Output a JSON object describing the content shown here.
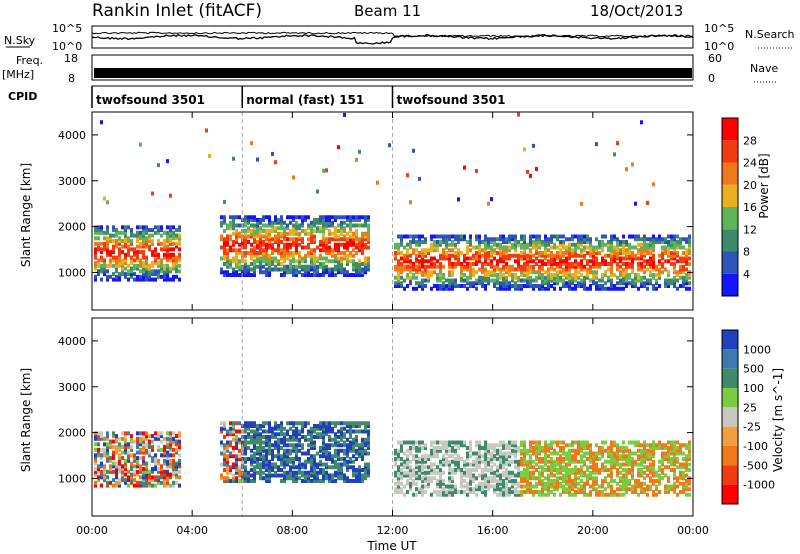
{
  "header": {
    "station": "Rankin Inlet (fitACF)",
    "beam": "Beam 11",
    "date": "18/Oct/2013"
  },
  "panels": {
    "nsky_label": "N.Sky",
    "nsearch_label": "N.Search",
    "nsky_ticks": [
      "10^5",
      "10^0"
    ],
    "nsky_right_ticks": [
      "10^5",
      "10^0"
    ],
    "freq_label": "Freq.",
    "freq_unit": "[MHz]",
    "freq_ticks": [
      "18",
      "8"
    ],
    "nave_label": "Nave",
    "nave_ticks": [
      "60",
      "0"
    ],
    "cpid_label": "CPID",
    "cpid_segments": [
      {
        "label": "twofsound 3501",
        "start_hour": 0,
        "end_hour": 6
      },
      {
        "label": "normal (fast) 151",
        "start_hour": 6,
        "end_hour": 12
      },
      {
        "label": "twofsound 3501",
        "start_hour": 12,
        "end_hour": 24
      }
    ]
  },
  "axes": {
    "ylabel": "Slant Range [km]",
    "yticks": [
      "1000",
      "2000",
      "3000",
      "4000"
    ],
    "xlabel": "Time UT",
    "xticks": [
      "00:00",
      "04:00",
      "08:00",
      "12:00",
      "16:00",
      "20:00",
      "00:00"
    ]
  },
  "power_scale": {
    "label": "Power [dB]",
    "ticks": [
      "4",
      "8",
      "12",
      "16",
      "20",
      "24",
      "28"
    ],
    "colors": [
      "#1414ff",
      "#2d55b8",
      "#3f8a6a",
      "#5fb35a",
      "#e8b020",
      "#f07818",
      "#f03c10",
      "#ff0000"
    ]
  },
  "velocity_scale": {
    "label": "Velocity [m s^-1]",
    "ticks": [
      "1000",
      "500",
      "100",
      "25",
      "-25",
      "-100",
      "-500",
      "-1000"
    ],
    "colors": [
      "#2040c0",
      "#3d7ab0",
      "#3f8a6a",
      "#7acc40",
      "#c8c8c0",
      "#f0a040",
      "#f07818",
      "#f03c10",
      "#ff0000"
    ]
  },
  "chart_data": [
    {
      "type": "heatmap",
      "title": "Power",
      "xlabel": "Time UT",
      "ylabel": "Slant Range [km]",
      "xlim": [
        0,
        24
      ],
      "ylim": [
        180,
        4500
      ],
      "colorbar_label": "Power [dB]",
      "colorbar_range": [
        0,
        30
      ],
      "echo_regions": [
        {
          "t0": 0.0,
          "t1": 3.5,
          "r0": 800,
          "r1": 2000,
          "typical_db": 26
        },
        {
          "t0": 5.0,
          "t1": 11.0,
          "r0": 900,
          "r1": 2200,
          "typical_db": 24
        },
        {
          "t0": 12.0,
          "t1": 24.0,
          "r0": 600,
          "r1": 1800,
          "typical_db": 28
        }
      ]
    },
    {
      "type": "heatmap",
      "title": "Velocity",
      "xlabel": "Time UT",
      "ylabel": "Slant Range [km]",
      "xlim": [
        0,
        24
      ],
      "ylim": [
        180,
        4500
      ],
      "colorbar_label": "Velocity [m s^-1]",
      "colorbar_range": [
        -1000,
        1000
      ]
    }
  ]
}
